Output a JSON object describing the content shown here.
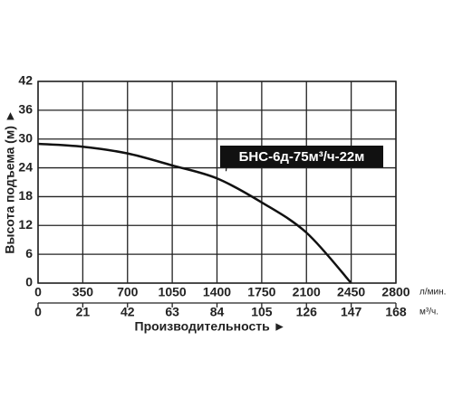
{
  "chart_data": {
    "type": "line",
    "ylabel": "Высота подъема (м) ►",
    "xlabel": "Производительность ►",
    "xunit": "л/мин.",
    "x2unit": "м³/ч.",
    "x": [
      0,
      350,
      700,
      1050,
      1400,
      1750,
      2100,
      2450
    ],
    "series": [
      {
        "name": "БНС-6д-75м³/ч-22м",
        "color": "#111111",
        "values": [
          29,
          28.4,
          27,
          24.5,
          21.8,
          16.8,
          10.5,
          0
        ]
      }
    ],
    "xlim": [
      0,
      2800
    ],
    "xticks": [
      0,
      350,
      700,
      1050,
      1400,
      1750,
      2100,
      2450,
      2800
    ],
    "x2lim": [
      0,
      168
    ],
    "x2ticks": [
      0,
      21,
      42,
      63,
      84,
      105,
      126,
      147,
      168
    ],
    "ylim": [
      0,
      42
    ],
    "yticks": [
      0,
      6,
      12,
      18,
      24,
      30,
      36,
      42
    ],
    "grid": true
  }
}
